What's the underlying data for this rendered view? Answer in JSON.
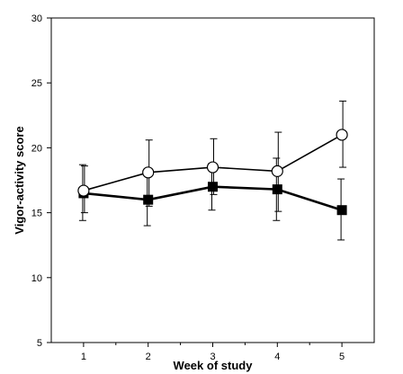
{
  "chart_data": {
    "type": "line",
    "title": "",
    "xlabel": "Week of study",
    "ylabel": "Vigor-activity score",
    "x": [
      1,
      2,
      3,
      4,
      5
    ],
    "xlim": [
      0.5,
      5.5
    ],
    "ylim": [
      5,
      30
    ],
    "yticks": [
      5,
      10,
      15,
      20,
      25,
      30
    ],
    "xticks": [
      1,
      2,
      3,
      4,
      5
    ],
    "grid": false,
    "series": [
      {
        "marker": "open-circle",
        "values": [
          16.7,
          18.1,
          18.5,
          18.2,
          21.0
        ],
        "error_upper": [
          18.6,
          20.6,
          20.7,
          21.2,
          23.6
        ],
        "error_lower": [
          15.0,
          15.5,
          16.4,
          15.1,
          18.5
        ]
      },
      {
        "marker": "filled-square",
        "values": [
          16.5,
          16.0,
          17.0,
          16.8,
          15.2
        ],
        "error_upper": [
          18.7,
          18.3,
          18.8,
          19.2,
          17.6
        ],
        "error_lower": [
          14.4,
          14.0,
          15.2,
          14.4,
          12.9
        ]
      }
    ],
    "colors": {
      "line": "#000000",
      "open_fill": "#ffffff",
      "filled_fill": "#000000"
    }
  }
}
